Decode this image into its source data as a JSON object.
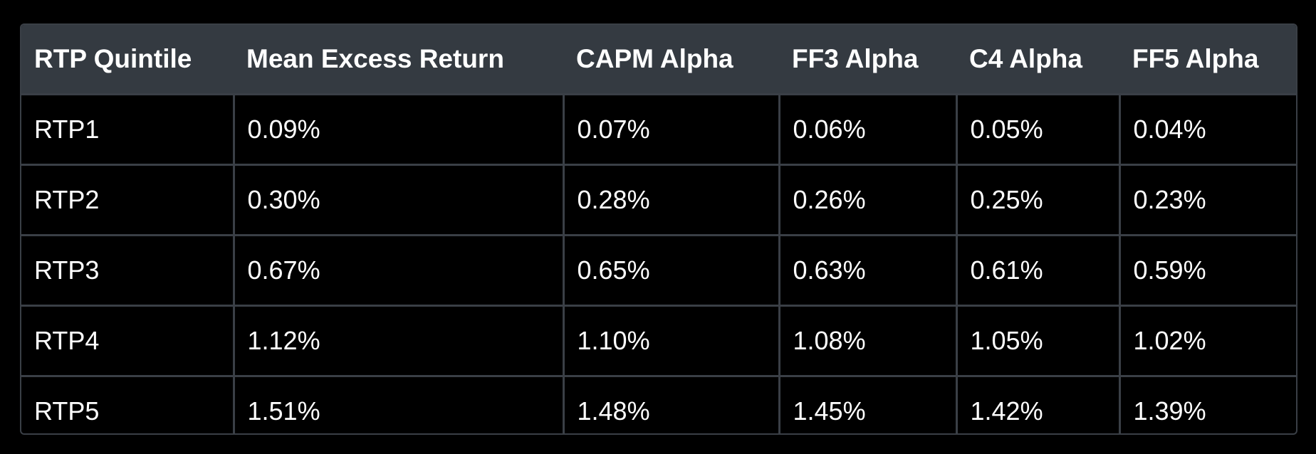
{
  "table": {
    "headers": [
      "RTP Quintile",
      "Mean Excess Return",
      "CAPM Alpha",
      "FF3 Alpha",
      "C4 Alpha",
      "FF5 Alpha"
    ],
    "rows": [
      [
        "RTP1",
        "0.09%",
        "0.07%",
        "0.06%",
        "0.05%",
        "0.04%"
      ],
      [
        "RTP2",
        "0.30%",
        "0.28%",
        "0.26%",
        "0.25%",
        "0.23%"
      ],
      [
        "RTP3",
        "0.67%",
        "0.65%",
        "0.63%",
        "0.61%",
        "0.59%"
      ],
      [
        "RTP4",
        "1.12%",
        "1.10%",
        "1.08%",
        "1.05%",
        "1.02%"
      ],
      [
        "RTP5",
        "1.51%",
        "1.48%",
        "1.45%",
        "1.42%",
        "1.39%"
      ]
    ]
  },
  "colors": {
    "background": "#000000",
    "header_background": "#343a41",
    "border": "#3a3f46",
    "text": "#ffffff"
  }
}
